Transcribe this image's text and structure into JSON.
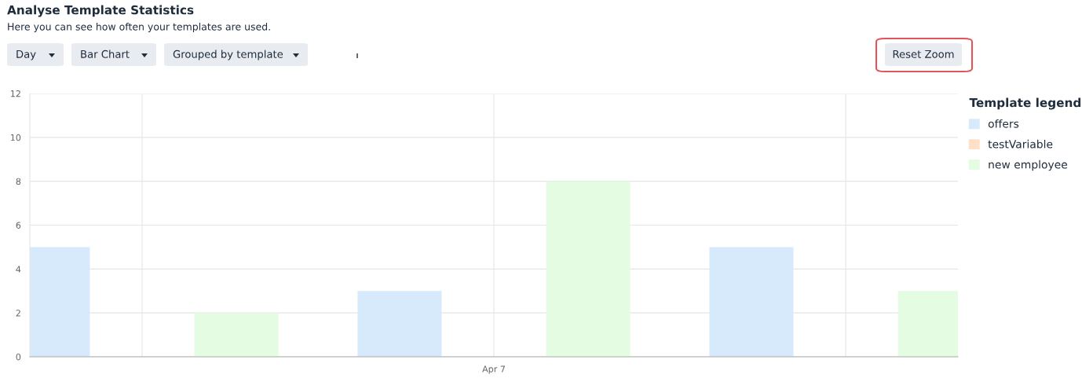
{
  "chart_data": {
    "type": "bar",
    "title": "Analyse Template Statistics",
    "subtitle": "Here you can see how often your templates are used.",
    "annotations": [
      "Day",
      "Bar Chart",
      "Grouped by template",
      "Reset Zoom"
    ],
    "categories": [
      null,
      "Apr 7",
      null
    ],
    "series": [
      {
        "name": "offers",
        "color": "#d7eafb",
        "values": [
          5,
          3,
          5
        ]
      },
      {
        "name": "testVariable",
        "color": "#ffe0c6",
        "values": [
          0,
          0,
          0
        ]
      },
      {
        "name": "new employee",
        "color": "#e4fde2",
        "values": [
          2,
          8,
          3
        ]
      }
    ],
    "ylim": [
      0,
      12
    ],
    "yticks": [
      0,
      2,
      4,
      6,
      8,
      10,
      12
    ],
    "grid": true,
    "legend": "top right",
    "legend_title": "Template legend"
  }
}
